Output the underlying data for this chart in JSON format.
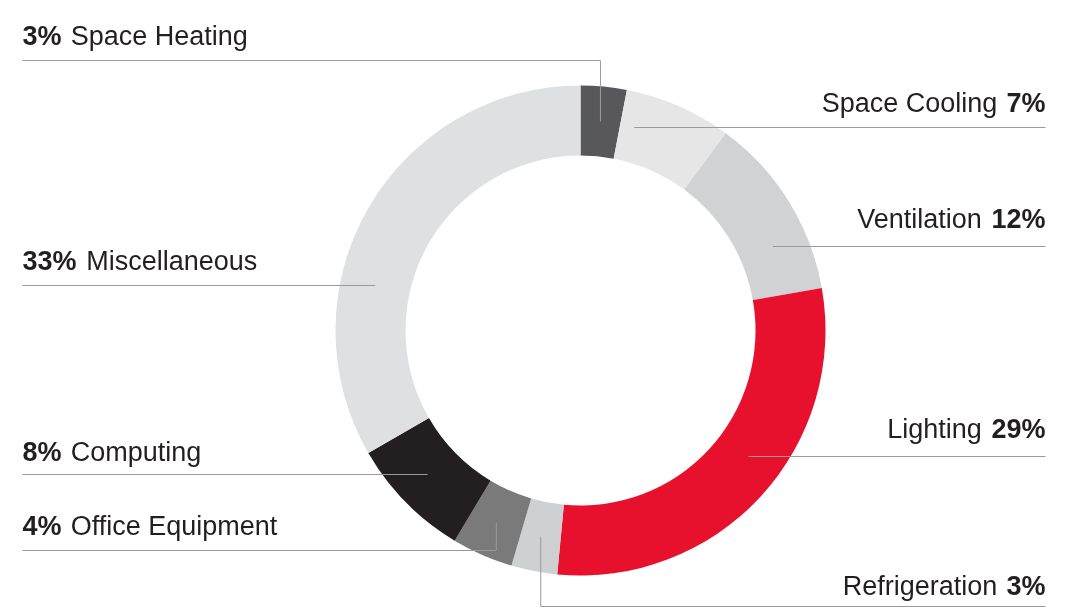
{
  "chart_data": {
    "type": "donut",
    "categories": [
      "Space Heating",
      "Space Cooling",
      "Ventilation",
      "Lighting",
      "Refrigeration",
      "Office Equipment",
      "Computing",
      "Miscellaneous"
    ],
    "values": [
      3,
      7,
      12,
      29,
      3,
      4,
      8,
      33
    ],
    "colors": [
      "#58585a",
      "#e6e6e7",
      "#d1d2d3",
      "#e8112d",
      "#cfd0d1",
      "#7a7a7a",
      "#231f20",
      "#dfe0e1"
    ],
    "value_labels": [
      "3%",
      "7%",
      "12%",
      "29%",
      "3%",
      "4%",
      "8%",
      "33%"
    ]
  }
}
